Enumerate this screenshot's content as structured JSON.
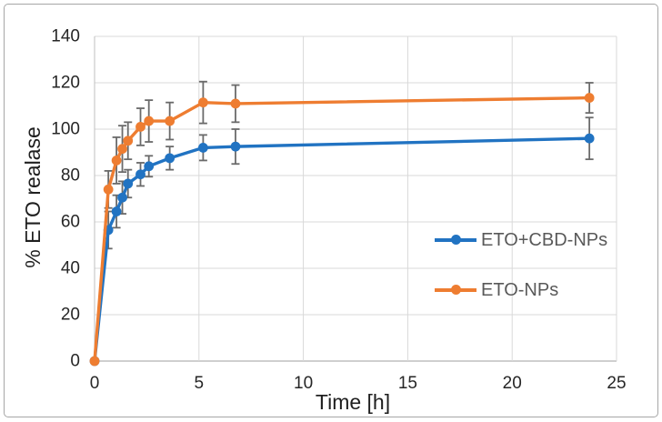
{
  "chart_data": {
    "type": "line",
    "title": "",
    "xlabel": "Time [h]",
    "ylabel": "% ETO realase",
    "xlim": [
      0,
      25
    ],
    "ylim": [
      0,
      140
    ],
    "x_ticks": [
      0,
      5,
      10,
      15,
      20,
      25
    ],
    "y_ticks": [
      0,
      20,
      40,
      60,
      80,
      100,
      120,
      140
    ],
    "grid": true,
    "legend_position": "inside-right",
    "error_bars": true,
    "x": [
      0,
      0.66,
      1.05,
      1.33,
      1.6,
      2.2,
      2.6,
      3.6,
      5.2,
      6.75,
      23.7
    ],
    "series": [
      {
        "name": "ETO+CBD-NPs",
        "color": "#2173C2",
        "values": [
          0,
          56.5,
          64.5,
          70.5,
          76.5,
          80.5,
          84,
          87.5,
          92,
          92.5,
          96
        ],
        "errors": [
          0,
          8,
          7,
          7,
          6,
          5,
          4.5,
          5,
          5.5,
          7.5,
          9
        ]
      },
      {
        "name": "ETO-NPs",
        "color": "#EE7D31",
        "values": [
          0,
          74,
          86.5,
          91.5,
          95,
          101,
          103.5,
          103.5,
          111.5,
          111,
          113.5
        ],
        "errors": [
          0,
          8,
          10,
          10,
          8,
          8,
          9,
          8,
          9,
          8,
          6.5
        ]
      }
    ],
    "colors": {
      "error_bar": "#6A6A6A",
      "gridline": "#D9D9D9",
      "axis_line": "#BFBFBF",
      "tick_label": "#262626",
      "axis_title": "#1F1F1F",
      "legend_text": "#595959",
      "figure_border": "#A6A6A6"
    }
  }
}
